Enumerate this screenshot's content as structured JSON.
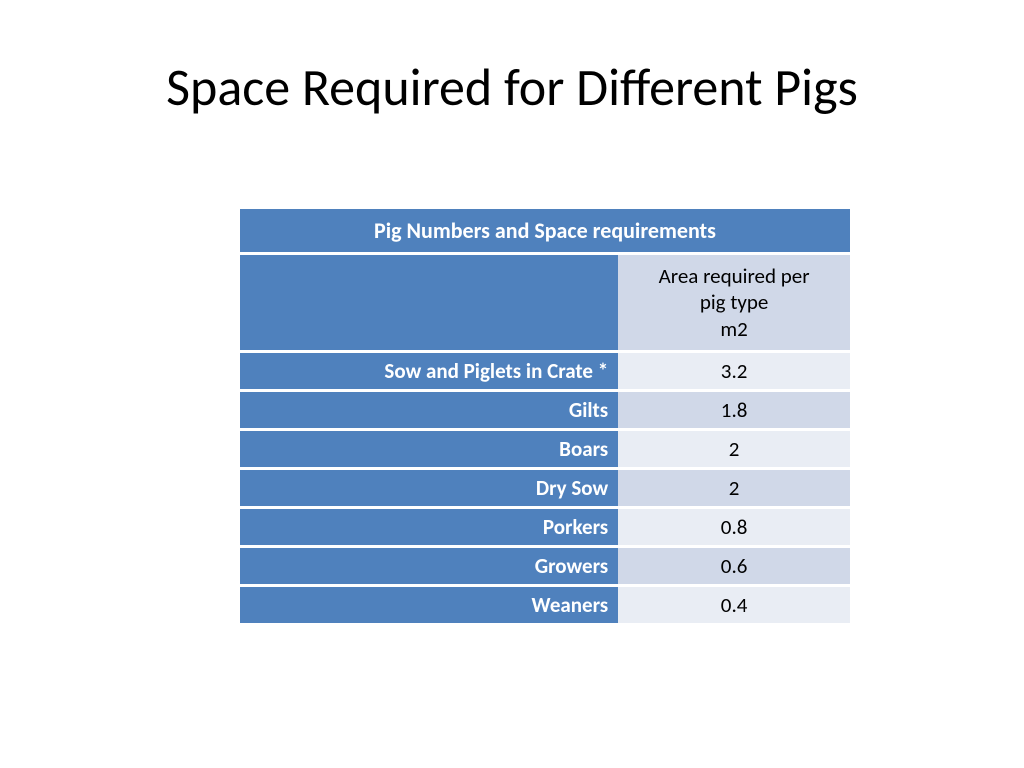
{
  "title": "Space Required for Different Pigs",
  "table": {
    "header": "Pig Numbers and Space requirements",
    "subheader_line1": "Area required per",
    "subheader_line2": "pig type",
    "subheader_line3": "m2",
    "rows": [
      {
        "label": "Sow and Piglets in Crate *",
        "value": "3.2"
      },
      {
        "label": "Gilts",
        "value": "1.8"
      },
      {
        "label": "Boars",
        "value": "2"
      },
      {
        "label": "Dry Sow",
        "value": "2"
      },
      {
        "label": "Porkers",
        "value": "0.8"
      },
      {
        "label": "Growers",
        "value": "0.6"
      },
      {
        "label": "Weaners",
        "value": "0.4"
      }
    ],
    "colors": {
      "header_bg": "#4f81bd",
      "header_fg": "#ffffff",
      "band_light": "#e9edf4",
      "band_dark": "#d0d8e8",
      "value_fg": "#000000",
      "row_separator": "#ffffff"
    },
    "font_size_title": 52,
    "font_size_cells": 21
  }
}
